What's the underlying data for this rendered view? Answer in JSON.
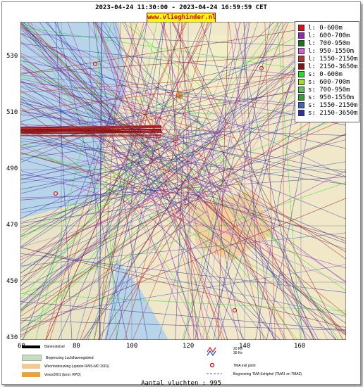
{
  "title": "2023-04-24 11:30:00 - 2023-04-24 16:59:59 CET",
  "brand": "www.vlieghinder.nl",
  "axes": {
    "y_ticks": [
      "530",
      "510",
      "490",
      "470",
      "450",
      "430"
    ],
    "x_ticks": [
      "60",
      "80",
      "100",
      "120",
      "140",
      "160"
    ]
  },
  "legend": [
    {
      "label": "l: 0-600m",
      "color": "#e01010"
    },
    {
      "label": "l: 600-700m",
      "color": "#a020c0"
    },
    {
      "label": "l: 700-950m",
      "color": "#207020"
    },
    {
      "label": "l: 950-1550m",
      "color": "#d060d0"
    },
    {
      "label": "l: 1550-2150m",
      "color": "#c03030"
    },
    {
      "label": "l: 2150-3650m",
      "color": "#8a1010"
    },
    {
      "label": "s: 0-600m",
      "color": "#20e020"
    },
    {
      "label": "s: 600-700m",
      "color": "#a0e020"
    },
    {
      "label": "s: 700-950m",
      "color": "#60c060"
    },
    {
      "label": "s: 950-1550m",
      "color": "#30a030"
    },
    {
      "label": "s: 1550-2150m",
      "color": "#4060c0"
    },
    {
      "label": "s: 2150-3650m",
      "color": "#3030a0"
    }
  ],
  "map_legend": {
    "runway": "Banenstelsel",
    "airport": "Begrenzing Luchthavengebied",
    "housing": "Woonbebouwing (update RWS-MD 2001)",
    "vinex": "Vinex2001 (bron: RPD)",
    "ke20": "20 Ke",
    "ke35": "35 Ke",
    "tma_exit": "TMA exit point",
    "tma_boundary": "Begrenzing TMA Schiphol  (TMA1 en TMA3)"
  },
  "flight_count": "Aantal vluchten : 995"
}
